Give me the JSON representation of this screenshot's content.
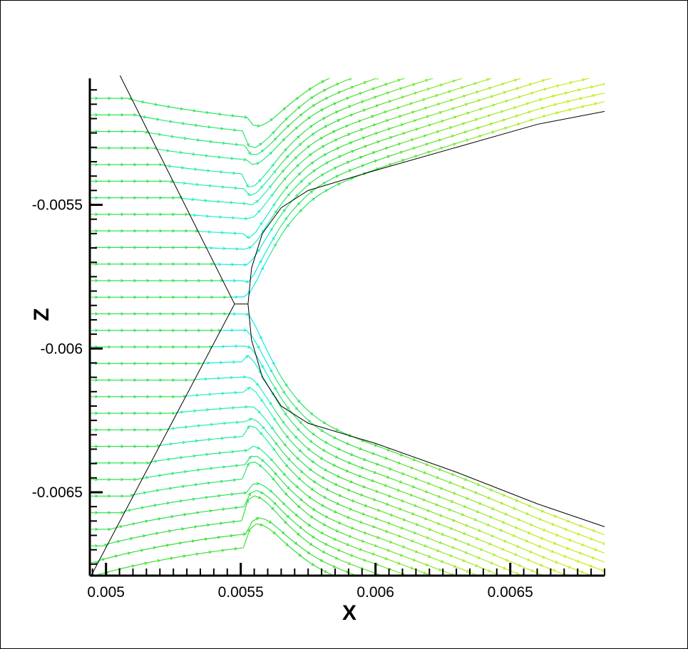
{
  "chart_data": {
    "type": "vector-field",
    "description_visible": "velocity vector plot around a blunt body with shock",
    "xlabel": "X",
    "ylabel": "Z",
    "xlim": [
      0.00494,
      0.00685
    ],
    "ylim": [
      -0.00679,
      -0.00506
    ],
    "x_ticks": [
      0.005,
      0.0055,
      0.006,
      0.0065
    ],
    "x_tick_labels": [
      "0.005",
      "0.0055",
      "0.006",
      "0.0065"
    ],
    "y_ticks": [
      -0.0055,
      -0.006,
      -0.0065
    ],
    "y_tick_labels": [
      "-0.0055",
      "-0.006",
      "-0.0065"
    ],
    "body": {
      "nose_x": 0.005527,
      "center_z": -0.005845,
      "upper_surface": [
        [
          0.005527,
          -0.005845
        ],
        [
          0.00554,
          -0.00572
        ],
        [
          0.00558,
          -0.0056
        ],
        [
          0.00565,
          -0.00551
        ],
        [
          0.00575,
          -0.00545
        ],
        [
          0.006,
          -0.00538
        ],
        [
          0.0063,
          -0.0053
        ],
        [
          0.0066,
          -0.00522
        ],
        [
          0.00685,
          -0.005175
        ]
      ],
      "lower_surface": [
        [
          0.005527,
          -0.005845
        ],
        [
          0.00554,
          -0.00597
        ],
        [
          0.00558,
          -0.0061
        ],
        [
          0.00565,
          -0.0062
        ],
        [
          0.00575,
          -0.00626
        ],
        [
          0.006,
          -0.00633
        ],
        [
          0.0063,
          -0.00643
        ],
        [
          0.0066,
          -0.00654
        ],
        [
          0.00685,
          -0.00662
        ]
      ]
    },
    "shock": {
      "apex": [
        0.005477,
        -0.005845
      ],
      "upper_end": [
        0.005052,
        -0.00505
      ],
      "lower_end": [
        0.004945,
        -0.00679
      ]
    },
    "colormap": [
      "#00e8ff",
      "#20f0c0",
      "#33dd33",
      "#aaee22",
      "#eeee00"
    ],
    "freestream_color": "#33dd33"
  }
}
